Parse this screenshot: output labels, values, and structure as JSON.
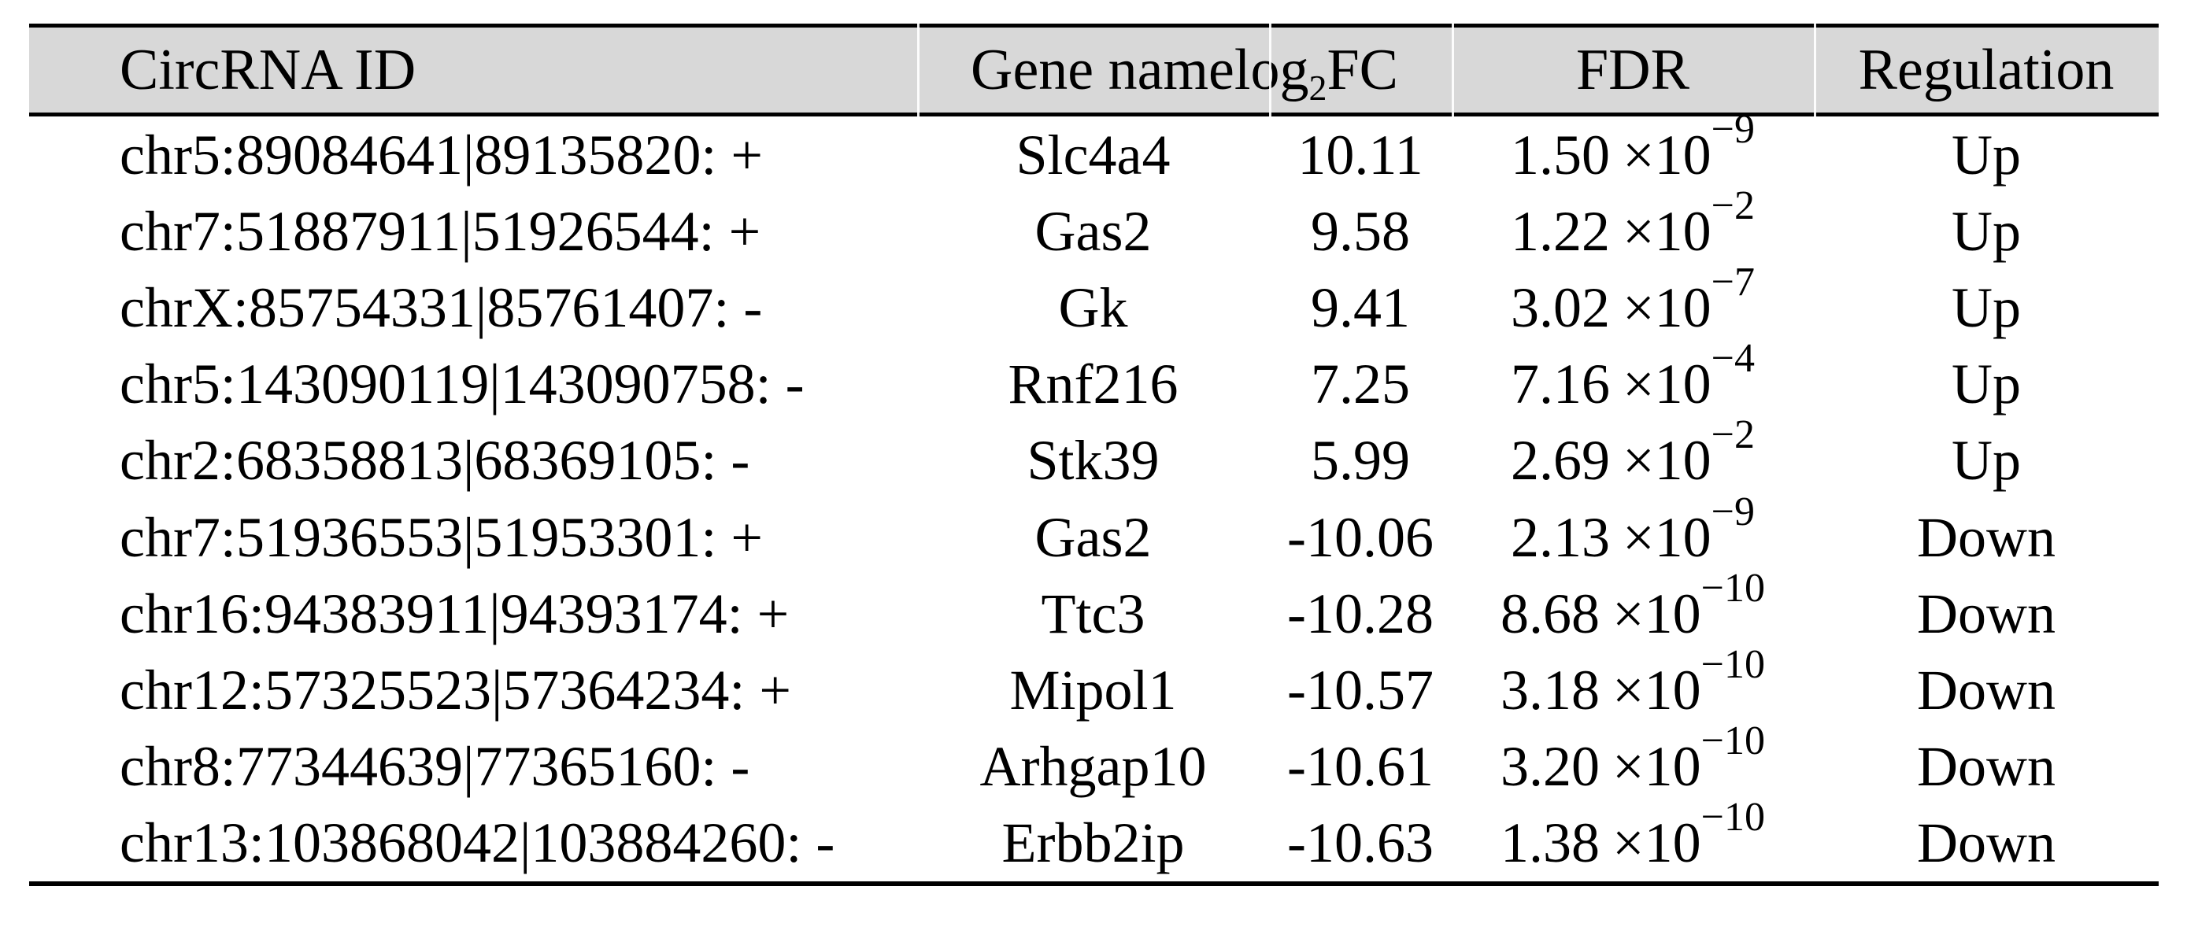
{
  "table_title_context": "Differentially expressed circRNAs table",
  "colors": {
    "header_bg": "#d8d8d8",
    "border": "#000000",
    "text": "#000000",
    "background": "#ffffff"
  },
  "header": {
    "col1": "CircRNA ID",
    "col2": "Gene name",
    "col3": {
      "prefix": "log",
      "sub": "2",
      "suffix": "FC"
    },
    "col4": "FDR",
    "col5": "Regulation"
  },
  "fdr": {
    "times": "×10"
  },
  "rows": [
    {
      "circ": "chr5:89084641|89135820: +",
      "gene": "Slc4a4",
      "log2fc": "10.11",
      "fdr_m": "1.50",
      "fdr_e": "−9",
      "reg": "Up"
    },
    {
      "circ": "chr7:51887911|51926544: +",
      "gene": "Gas2",
      "log2fc": "9.58",
      "fdr_m": "1.22",
      "fdr_e": "−2",
      "reg": "Up"
    },
    {
      "circ": "chrX:85754331|85761407: -",
      "gene": "Gk",
      "log2fc": "9.41",
      "fdr_m": "3.02",
      "fdr_e": "−7",
      "reg": "Up"
    },
    {
      "circ": "chr5:143090119|143090758: -",
      "gene": "Rnf216",
      "log2fc": "7.25",
      "fdr_m": "7.16",
      "fdr_e": "−4",
      "reg": "Up"
    },
    {
      "circ": "chr2:68358813|68369105: -",
      "gene": "Stk39",
      "log2fc": "5.99",
      "fdr_m": "2.69",
      "fdr_e": "−2",
      "reg": "Up"
    },
    {
      "circ": "chr7:51936553|51953301: +",
      "gene": "Gas2",
      "log2fc": "-10.06",
      "fdr_m": "2.13",
      "fdr_e": "−9",
      "reg": "Down"
    },
    {
      "circ": "chr16:94383911|94393174: +",
      "gene": "Ttc3",
      "log2fc": "-10.28",
      "fdr_m": "8.68",
      "fdr_e": "−10",
      "reg": "Down"
    },
    {
      "circ": "chr12:57325523|57364234: +",
      "gene": "Mipol1",
      "log2fc": "-10.57",
      "fdr_m": "3.18",
      "fdr_e": "−10",
      "reg": "Down"
    },
    {
      "circ": "chr8:77344639|77365160: -",
      "gene": "Arhgap10",
      "log2fc": "-10.61",
      "fdr_m": "3.20",
      "fdr_e": "−10",
      "reg": "Down"
    },
    {
      "circ": "chr13:103868042|103884260: -",
      "gene": "Erbb2ip",
      "log2fc": "-10.63",
      "fdr_m": "1.38",
      "fdr_e": "−10",
      "reg": "Down"
    }
  ]
}
